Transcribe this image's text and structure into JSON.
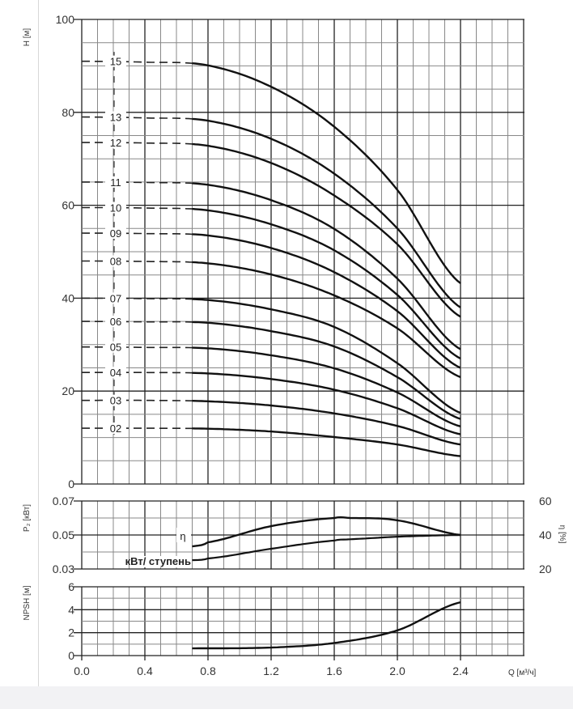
{
  "chart_data": [
    {
      "type": "line",
      "title": "",
      "xlabel": "Q [м³/ч]",
      "ylabel": "H [м]",
      "xlim": [
        0,
        2.8
      ],
      "ylim": [
        0,
        100
      ],
      "grid": true,
      "x_ticks": [
        "0.0",
        "0.4",
        "0.8",
        "1.2",
        "1.6",
        "2.0",
        "2.4"
      ],
      "y_ticks": [
        "0",
        "20",
        "40",
        "60",
        "80",
        "100"
      ],
      "x": [
        0,
        0.4,
        0.8,
        1.2,
        1.6,
        2.0,
        2.4
      ],
      "solid_from_q": 0.7,
      "series": [
        {
          "name": "15",
          "values": [
            91,
            90.8,
            90.1,
            85.5,
            76.9,
            63.3,
            43.2
          ]
        },
        {
          "name": "13",
          "values": [
            79,
            78.8,
            78.2,
            74.3,
            66.8,
            55,
            38
          ]
        },
        {
          "name": "12",
          "values": [
            73.5,
            73.4,
            72.8,
            69.1,
            62.1,
            51.6,
            36
          ]
        },
        {
          "name": "11",
          "values": [
            65,
            64.9,
            64.4,
            61.1,
            54.9,
            44.2,
            29
          ]
        },
        {
          "name": "10",
          "values": [
            59.5,
            59.4,
            58.9,
            55.9,
            50.3,
            40.7,
            27
          ]
        },
        {
          "name": "09",
          "values": [
            54,
            53.9,
            53.5,
            50.8,
            45.6,
            37.2,
            25
          ]
        },
        {
          "name": "08",
          "values": [
            48,
            47.9,
            47.5,
            45.1,
            40.6,
            33.5,
            23
          ]
        },
        {
          "name": "07",
          "values": [
            40,
            39.9,
            39.6,
            37.6,
            33.8,
            26,
            15.3
          ]
        },
        {
          "name": "06",
          "values": [
            35,
            34.9,
            34.7,
            32.9,
            29.6,
            23,
            14
          ]
        },
        {
          "name": "05",
          "values": [
            29.5,
            29.4,
            29.2,
            27.7,
            24.9,
            19.7,
            12.4
          ]
        },
        {
          "name": "04",
          "values": [
            24,
            24,
            23.8,
            22.6,
            20.3,
            16.3,
            10.7
          ]
        },
        {
          "name": "03",
          "values": [
            18,
            18,
            17.8,
            16.9,
            15.2,
            12.5,
            8.5
          ]
        },
        {
          "name": "02",
          "values": [
            12,
            12,
            11.9,
            11.3,
            10.1,
            8.5,
            6
          ]
        }
      ]
    },
    {
      "type": "line",
      "ylabel": "P₂ [кВт]",
      "ylabel_right": "η [%]",
      "ylim": [
        0.03,
        0.07
      ],
      "ylim_right": [
        20,
        60
      ],
      "y_ticks": [
        "0.07",
        "0.05",
        "0.03"
      ],
      "y_ticks_right": [
        "60",
        "40",
        "20"
      ],
      "x": [
        0.7,
        0.8,
        1.2,
        1.6,
        1.7,
        2.0,
        2.4
      ],
      "series": [
        {
          "name": "η",
          "axis": "right",
          "values": [
            33.3,
            35.7,
            45.2,
            50,
            50,
            48.6,
            40
          ]
        },
        {
          "name": "кВт/ ступень",
          "axis": "left",
          "values": [
            0.0352,
            0.0362,
            0.0419,
            0.0467,
            0.0475,
            0.049,
            0.05
          ]
        }
      ]
    },
    {
      "type": "line",
      "ylabel": "NPSH [м]",
      "ylim": [
        0,
        6
      ],
      "y_ticks": [
        "0",
        "2",
        "4",
        "6"
      ],
      "x": [
        0.7,
        1.2,
        1.6,
        2.0,
        2.4
      ],
      "series": [
        {
          "name": "NPSH",
          "values": [
            0.63,
            0.7,
            1.1,
            2.2,
            4.65
          ]
        }
      ]
    }
  ]
}
